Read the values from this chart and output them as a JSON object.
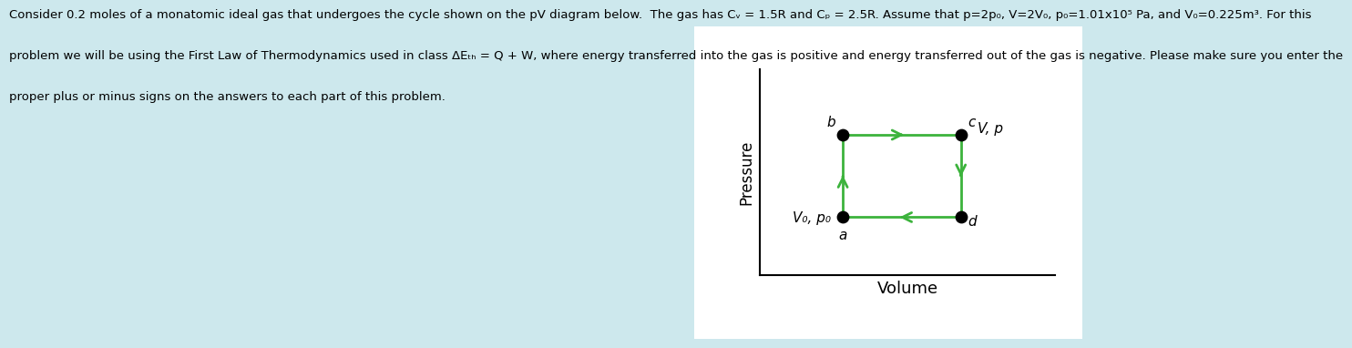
{
  "background_color": "#cde8ed",
  "panel_background": "#ffffff",
  "text_line1": "Consider 0.2 moles of a monatomic ideal gas that undergoes the cycle shown on the pV diagram below.  The gas has Cᵥ = 1.5R and Cₚ = 2.5R. Assume that p=2p₀, V=2V₀, p₀=1.01x10⁵ Pa, and V₀=0.225m³. For this",
  "text_line2": "problem we will be using the First Law of Thermodynamics used in class ΔEₜₕ = Q + W, where energy transferred into the gas is positive and energy transferred out of the gas is negative. Please make sure you enter the",
  "text_line3": "proper plus or minus signs on the answers to each part of this problem.",
  "text_fontsize": 9.5,
  "text_color": "#000000",
  "arrow_color": "#3cb33c",
  "dot_color": "#000000",
  "dot_size": 80,
  "xlabel": "Volume",
  "ylabel": "Pressure",
  "label_a": "a",
  "label_b": "b",
  "label_c": "c",
  "label_d": "d",
  "label_Vp": "V, p",
  "label_Vopo": "V₀, p₀",
  "points": {
    "a": [
      1,
      1
    ],
    "b": [
      1,
      2
    ],
    "c": [
      2,
      2
    ],
    "d": [
      2,
      1
    ]
  },
  "xlim": [
    0.3,
    2.8
  ],
  "ylim": [
    0.3,
    2.8
  ],
  "label_fontsize": 11,
  "xlabel_fontsize": 13,
  "ylabel_fontsize": 12
}
